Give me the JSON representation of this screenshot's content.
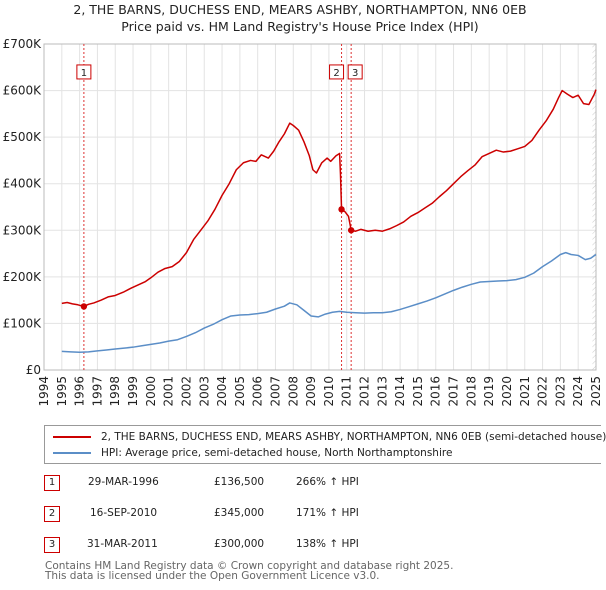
{
  "title_line1": "2, THE BARNS, DUCHESS END, MEARS ASHBY, NORTHAMPTON, NN6 0EB",
  "title_line2": "Price paid vs. HM Land Registry's House Price Index (HPI)",
  "chart_data": {
    "type": "line",
    "xlim": [
      1994,
      2025
    ],
    "ylim": [
      0,
      700000
    ],
    "x_ticks": [
      1994,
      1995,
      1996,
      1997,
      1998,
      1999,
      2000,
      2001,
      2002,
      2003,
      2004,
      2005,
      2006,
      2007,
      2008,
      2009,
      2010,
      2011,
      2012,
      2013,
      2014,
      2015,
      2016,
      2017,
      2018,
      2019,
      2020,
      2021,
      2022,
      2023,
      2024,
      2025
    ],
    "y_ticks": [
      0,
      100000,
      200000,
      300000,
      400000,
      500000,
      600000,
      700000
    ],
    "y_tick_labels": [
      "£0",
      "£100K",
      "£200K",
      "£300K",
      "£400K",
      "£500K",
      "£600K",
      "£700K"
    ],
    "grid": true,
    "series": [
      {
        "name": "2, THE BARNS, DUCHESS END, MEARS ASHBY, NORTHAMPTON, NN6 0EB (semi-detached house)",
        "color": "#cc0000",
        "points": [
          [
            1995.0,
            143000
          ],
          [
            1995.3,
            145000
          ],
          [
            1995.6,
            142000
          ],
          [
            1995.9,
            140000
          ],
          [
            1996.24,
            136500
          ],
          [
            1996.5,
            141000
          ],
          [
            1996.8,
            144000
          ],
          [
            1997.2,
            150000
          ],
          [
            1997.6,
            157000
          ],
          [
            1998.0,
            160000
          ],
          [
            1998.5,
            168000
          ],
          [
            1998.9,
            176000
          ],
          [
            1999.3,
            183000
          ],
          [
            1999.7,
            190000
          ],
          [
            2000.0,
            198000
          ],
          [
            2000.4,
            210000
          ],
          [
            2000.8,
            218000
          ],
          [
            2001.2,
            222000
          ],
          [
            2001.6,
            233000
          ],
          [
            2002.0,
            252000
          ],
          [
            2002.4,
            280000
          ],
          [
            2002.8,
            300000
          ],
          [
            2003.2,
            320000
          ],
          [
            2003.6,
            345000
          ],
          [
            2004.0,
            375000
          ],
          [
            2004.4,
            400000
          ],
          [
            2004.8,
            430000
          ],
          [
            2005.2,
            445000
          ],
          [
            2005.6,
            450000
          ],
          [
            2005.9,
            448000
          ],
          [
            2006.2,
            462000
          ],
          [
            2006.6,
            455000
          ],
          [
            2006.9,
            470000
          ],
          [
            2007.2,
            490000
          ],
          [
            2007.5,
            507000
          ],
          [
            2007.8,
            530000
          ],
          [
            2008.0,
            525000
          ],
          [
            2008.3,
            515000
          ],
          [
            2008.6,
            490000
          ],
          [
            2008.9,
            460000
          ],
          [
            2009.1,
            430000
          ],
          [
            2009.3,
            423000
          ],
          [
            2009.6,
            445000
          ],
          [
            2009.9,
            455000
          ],
          [
            2010.1,
            448000
          ],
          [
            2010.4,
            460000
          ],
          [
            2010.6,
            465000
          ],
          [
            2010.65,
            420000
          ],
          [
            2010.71,
            345000
          ],
          [
            2010.9,
            340000
          ],
          [
            2011.1,
            330000
          ],
          [
            2011.25,
            300000
          ],
          [
            2011.5,
            298000
          ],
          [
            2011.8,
            302000
          ],
          [
            2012.2,
            298000
          ],
          [
            2012.6,
            300000
          ],
          [
            2013.0,
            298000
          ],
          [
            2013.4,
            303000
          ],
          [
            2013.8,
            310000
          ],
          [
            2014.2,
            318000
          ],
          [
            2014.6,
            330000
          ],
          [
            2015.0,
            338000
          ],
          [
            2015.4,
            348000
          ],
          [
            2015.8,
            358000
          ],
          [
            2016.2,
            372000
          ],
          [
            2016.6,
            385000
          ],
          [
            2017.0,
            400000
          ],
          [
            2017.4,
            415000
          ],
          [
            2017.8,
            428000
          ],
          [
            2018.2,
            440000
          ],
          [
            2018.6,
            458000
          ],
          [
            2019.0,
            465000
          ],
          [
            2019.4,
            472000
          ],
          [
            2019.8,
            468000
          ],
          [
            2020.2,
            470000
          ],
          [
            2020.6,
            475000
          ],
          [
            2021.0,
            480000
          ],
          [
            2021.4,
            493000
          ],
          [
            2021.8,
            515000
          ],
          [
            2022.2,
            535000
          ],
          [
            2022.6,
            560000
          ],
          [
            2022.9,
            585000
          ],
          [
            2023.1,
            600000
          ],
          [
            2023.4,
            592000
          ],
          [
            2023.7,
            585000
          ],
          [
            2024.0,
            590000
          ],
          [
            2024.3,
            572000
          ],
          [
            2024.6,
            570000
          ],
          [
            2024.9,
            592000
          ],
          [
            2025.0,
            602000
          ]
        ]
      },
      {
        "name": "HPI: Average price, semi-detached house, North Northamptonshire",
        "color": "#5b8ec7",
        "points": [
          [
            1995.0,
            40000
          ],
          [
            1995.5,
            39000
          ],
          [
            1996.0,
            38000
          ],
          [
            1996.5,
            39000
          ],
          [
            1997.0,
            41000
          ],
          [
            1997.5,
            43000
          ],
          [
            1998.0,
            45000
          ],
          [
            1998.5,
            47000
          ],
          [
            1999.0,
            49000
          ],
          [
            1999.5,
            52000
          ],
          [
            2000.0,
            55000
          ],
          [
            2000.5,
            58000
          ],
          [
            2001.0,
            62000
          ],
          [
            2001.5,
            65000
          ],
          [
            2002.0,
            72000
          ],
          [
            2002.5,
            80000
          ],
          [
            2003.0,
            90000
          ],
          [
            2003.5,
            98000
          ],
          [
            2004.0,
            108000
          ],
          [
            2004.5,
            116000
          ],
          [
            2005.0,
            118000
          ],
          [
            2005.5,
            119000
          ],
          [
            2006.0,
            121000
          ],
          [
            2006.5,
            124000
          ],
          [
            2007.0,
            131000
          ],
          [
            2007.5,
            137000
          ],
          [
            2007.8,
            144000
          ],
          [
            2008.2,
            140000
          ],
          [
            2008.6,
            128000
          ],
          [
            2009.0,
            116000
          ],
          [
            2009.4,
            114000
          ],
          [
            2009.8,
            120000
          ],
          [
            2010.2,
            124000
          ],
          [
            2010.6,
            126000
          ],
          [
            2011.0,
            124000
          ],
          [
            2011.5,
            123000
          ],
          [
            2012.0,
            122000
          ],
          [
            2012.5,
            123000
          ],
          [
            2013.0,
            123000
          ],
          [
            2013.5,
            125000
          ],
          [
            2014.0,
            130000
          ],
          [
            2014.5,
            136000
          ],
          [
            2015.0,
            142000
          ],
          [
            2015.5,
            148000
          ],
          [
            2016.0,
            155000
          ],
          [
            2016.5,
            163000
          ],
          [
            2017.0,
            171000
          ],
          [
            2017.5,
            178000
          ],
          [
            2018.0,
            184000
          ],
          [
            2018.5,
            189000
          ],
          [
            2019.0,
            190000
          ],
          [
            2019.5,
            191000
          ],
          [
            2020.0,
            192000
          ],
          [
            2020.5,
            194000
          ],
          [
            2021.0,
            199000
          ],
          [
            2021.5,
            208000
          ],
          [
            2022.0,
            222000
          ],
          [
            2022.5,
            234000
          ],
          [
            2023.0,
            248000
          ],
          [
            2023.3,
            252000
          ],
          [
            2023.6,
            248000
          ],
          [
            2024.0,
            246000
          ],
          [
            2024.4,
            237000
          ],
          [
            2024.7,
            240000
          ],
          [
            2025.0,
            248000
          ]
        ]
      }
    ],
    "annotations": [
      {
        "label": "1",
        "x": 1996.24,
        "y": 136500
      },
      {
        "label": "2",
        "x": 2010.71,
        "y": 345000
      },
      {
        "label": "3",
        "x": 2011.25,
        "y": 300000
      }
    ]
  },
  "legend": [
    {
      "label": "2, THE BARNS, DUCHESS END, MEARS ASHBY, NORTHAMPTON, NN6 0EB (semi-detached house)",
      "color": "#cc0000"
    },
    {
      "label": "HPI: Average price, semi-detached house, North Northamptonshire",
      "color": "#5b8ec7"
    }
  ],
  "transactions": [
    {
      "num": "1",
      "date": "29-MAR-1996",
      "price": "£136,500",
      "hpi": "266% ↑ HPI"
    },
    {
      "num": "2",
      "date": "16-SEP-2010",
      "price": "£345,000",
      "hpi": "171% ↑ HPI"
    },
    {
      "num": "3",
      "date": "31-MAR-2011",
      "price": "£300,000",
      "hpi": "138% ↑ HPI"
    }
  ],
  "footer_line1": "Contains HM Land Registry data © Crown copyright and database right 2025.",
  "footer_line2": "This data is licensed under the Open Government Licence v3.0."
}
